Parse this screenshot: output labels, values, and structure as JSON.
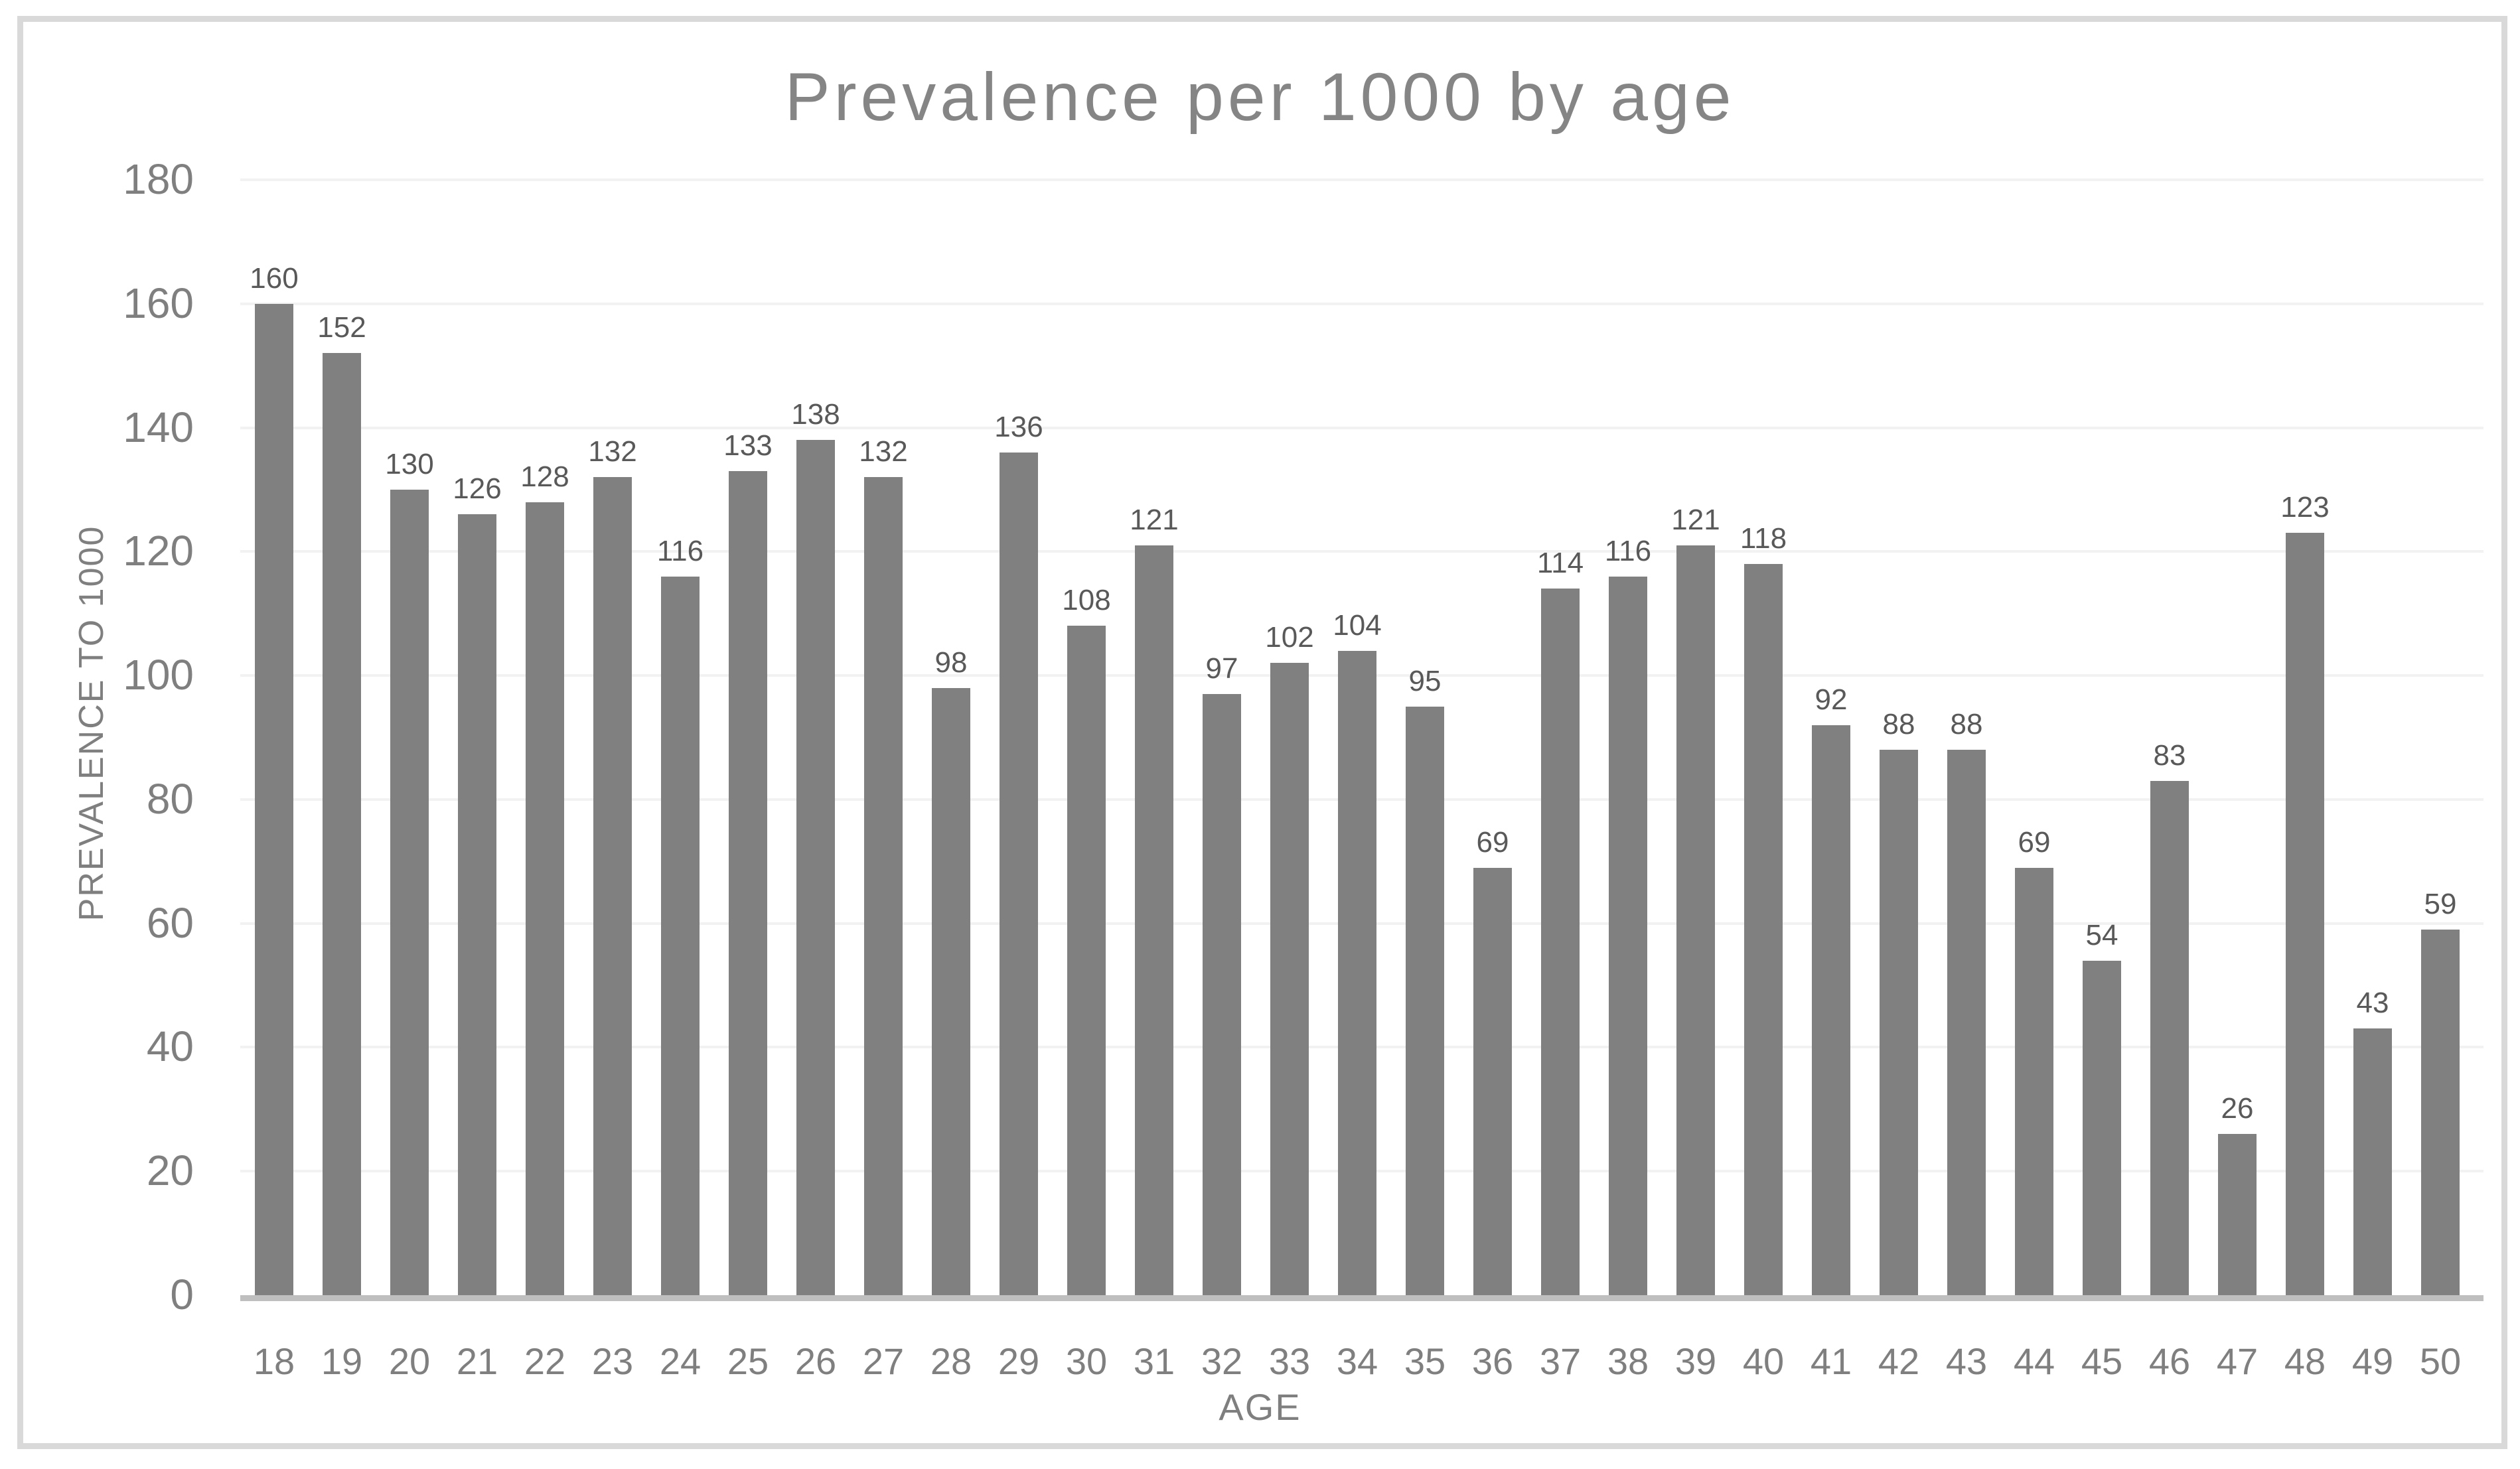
{
  "chart_data": {
    "type": "bar",
    "title": "Prevalence per 1000 by age",
    "xlabel": "AGE",
    "ylabel": "PREVALENCE TO 1000",
    "categories": [
      18,
      19,
      20,
      21,
      22,
      23,
      24,
      25,
      26,
      27,
      28,
      29,
      30,
      31,
      32,
      33,
      34,
      35,
      36,
      37,
      38,
      39,
      40,
      41,
      42,
      43,
      44,
      45,
      46,
      47,
      48,
      49,
      50
    ],
    "values": [
      160,
      152,
      130,
      126,
      128,
      132,
      116,
      133,
      138,
      132,
      98,
      136,
      108,
      121,
      97,
      102,
      104,
      95,
      69,
      114,
      116,
      121,
      118,
      92,
      88,
      88,
      69,
      54,
      83,
      26,
      123,
      43,
      59
    ],
    "ylim": [
      0,
      180
    ],
    "ytick_step": 20,
    "yticks": [
      0,
      20,
      40,
      60,
      80,
      100,
      120,
      140,
      160,
      180
    ],
    "grid": "horizontal-light",
    "legend": "none",
    "data_labels": "above-bars",
    "colors": {
      "bar": "#808080",
      "data_label": "#595959",
      "axis_text": "#7f7f7f",
      "title_text": "#858585",
      "gridline": "#f2f2f2",
      "axis_line": "#bfbfbf",
      "frame_border": "#d9d9d9",
      "background": "#ffffff"
    }
  }
}
